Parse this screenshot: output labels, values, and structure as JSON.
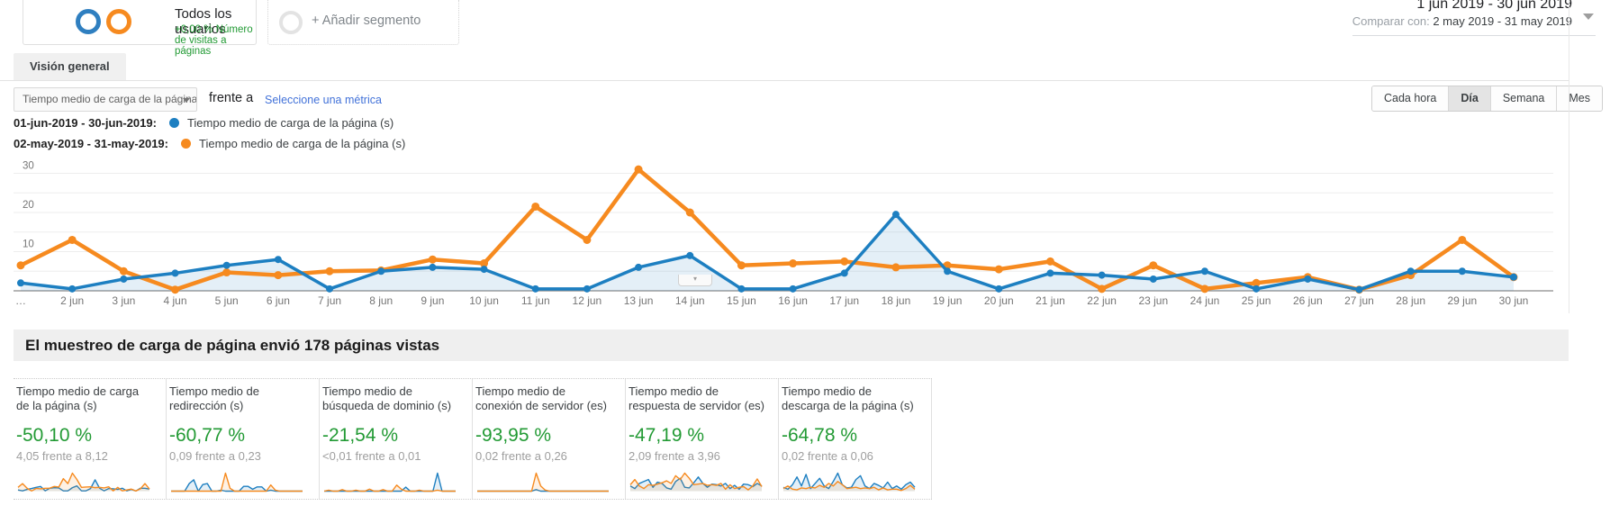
{
  "colors": {
    "blue": "#1d7fc1",
    "orange": "#f68a1f",
    "green": "#229a34",
    "link": "#4272d9"
  },
  "segments": {
    "all_users": {
      "title": "Todos los usuarios",
      "subtitle": "+0,00 % Número de visitas a páginas"
    },
    "add_segment": {
      "label": "+ Añadir segmento"
    }
  },
  "date_range": {
    "primary": "1 jun 2019 - 30 jun 2019",
    "compare_label": "Comparar con:",
    "compare_value": "2 may 2019 - 31 may 2019"
  },
  "tabs": {
    "overview": "Visión general"
  },
  "toolbar": {
    "metric_select": "Tiempo medio de carga de la página (s)",
    "vs_label": "frente a",
    "select_metric_link": "Seleccione una métrica",
    "granularity": [
      {
        "label": "Cada hora"
      },
      {
        "label": "Día"
      },
      {
        "label": "Semana"
      },
      {
        "label": "Mes"
      }
    ]
  },
  "legend": [
    {
      "range": "01-jun-2019 - 30-jun-2019:",
      "metric": "Tiempo medio de carga de la página (s)",
      "color": "#1d7fc1"
    },
    {
      "range": "02-may-2019 - 31-may-2019:",
      "metric": "Tiempo medio de carga de la página (s)",
      "color": "#f68a1f"
    }
  ],
  "chart_data": {
    "type": "line",
    "title": "",
    "categories": [
      "…",
      "2 jun",
      "3 jun",
      "4 jun",
      "5 jun",
      "6 jun",
      "7 jun",
      "8 jun",
      "9 jun",
      "10 jun",
      "11 jun",
      "12 jun",
      "13 jun",
      "14 jun",
      "15 jun",
      "16 jun",
      "17 jun",
      "18 jun",
      "19 jun",
      "20 jun",
      "21 jun",
      "22 jun",
      "23 jun",
      "24 jun",
      "25 jun",
      "26 jun",
      "27 jun",
      "28 jun",
      "29 jun",
      "30 jun"
    ],
    "series": [
      {
        "name": "01-jun-2019 - 30-jun-2019: Tiempo medio de carga de la página (s)",
        "color": "#1d7fc1",
        "fill": true,
        "values": [
          2,
          0.5,
          3,
          4.5,
          6.5,
          8,
          0.5,
          5,
          6,
          5.5,
          0.5,
          0.5,
          6,
          9,
          0.5,
          0.5,
          4.5,
          19.5,
          5,
          0.5,
          4.5,
          4,
          3,
          5,
          0.5,
          3,
          0.3,
          5,
          5,
          3.5
        ]
      },
      {
        "name": "02-may-2019 - 31-may-2019: Tiempo medio de carga de la página (s)",
        "color": "#f68a1f",
        "fill": false,
        "values": [
          6.5,
          13,
          5,
          0.3,
          4.7,
          4,
          5,
          5.2,
          8,
          7,
          21.5,
          13,
          31,
          20,
          6.5,
          7,
          7.5,
          6,
          6.5,
          5.5,
          7.5,
          0.5,
          6.5,
          0.5,
          2,
          3.5,
          0.3,
          4,
          13,
          3.5
        ]
      }
    ],
    "ylim": [
      0,
      35
    ],
    "yticks": [
      10,
      20,
      30
    ],
    "grid": true,
    "legend_position": "top-left"
  },
  "section": {
    "title": "El muestreo de carga de página envió 178 páginas vistas"
  },
  "cards": [
    {
      "title": "Tiempo medio de carga de la página (s)",
      "percent": "-50,10 %",
      "comparison": "4,05 frente a 8,12",
      "spark": {
        "blue": [
          2,
          0.5,
          3,
          4.5,
          6.5,
          8,
          0.5,
          5,
          6,
          5.5,
          0.5,
          0.5,
          6,
          9,
          0.5,
          0.5,
          4.5,
          19.5,
          5,
          0.5,
          4.5,
          4,
          3,
          5,
          0.5,
          3,
          0.3,
          5,
          5,
          3.5
        ],
        "orange": [
          6.5,
          13,
          5,
          0.3,
          4.7,
          4,
          5,
          5.2,
          8,
          7,
          21.5,
          13,
          31,
          20,
          6.5,
          7,
          7.5,
          6,
          6.5,
          5.5,
          7.5,
          0.5,
          6.5,
          0.5,
          2,
          3.5,
          0.3,
          4,
          13,
          3.5
        ]
      }
    },
    {
      "title": "Tiempo medio de redirección (s)",
      "percent": "-60,77 %",
      "comparison": "0,09 frente a 0,23",
      "spark": {
        "blue": [
          0,
          0,
          0,
          0,
          1.6,
          2.4,
          0,
          1.4,
          1.6,
          0,
          0,
          0.2,
          0,
          0,
          0,
          0,
          1,
          1,
          0.4,
          0.9,
          0.9,
          0,
          0.2,
          0,
          0,
          0,
          0,
          0,
          0,
          0
        ],
        "orange": [
          0,
          0,
          0,
          0,
          0,
          0,
          0,
          0,
          0,
          0,
          0,
          0,
          3.8,
          0.6,
          0,
          0,
          0,
          0,
          0,
          0,
          0,
          0,
          1.3,
          0.2,
          0,
          0,
          0,
          0,
          0,
          0
        ]
      }
    },
    {
      "title": "Tiempo medio de búsqueda de dominio (s)",
      "percent": "-21,54 %",
      "comparison": "<0,01 frente a 0,01",
      "spark": {
        "blue": [
          0,
          0,
          0,
          0,
          0,
          0,
          0,
          0,
          0,
          0,
          0,
          0,
          0,
          0,
          0,
          0,
          0,
          0,
          0.8,
          0,
          0,
          0,
          0,
          0,
          0,
          3.6,
          0,
          0,
          0,
          0
        ],
        "orange": [
          0,
          0.2,
          0,
          0,
          0.3,
          0,
          0,
          0.2,
          0,
          0,
          0.4,
          0,
          0,
          0.3,
          0,
          0,
          1.2,
          0.4,
          0,
          0,
          0,
          0.2,
          0,
          0,
          0,
          0.2,
          0,
          0,
          0,
          0
        ]
      }
    },
    {
      "title": "Tiempo medio de conexión de servidor (es)",
      "percent": "-93,95 %",
      "comparison": "0,02 frente a 0,26",
      "spark": {
        "blue": [
          0,
          0,
          0,
          0,
          0,
          0,
          0,
          0,
          0,
          0,
          0,
          0,
          0,
          0.3,
          0,
          0,
          0,
          0,
          0,
          0,
          0,
          0,
          0,
          0,
          0,
          0,
          0,
          0,
          0,
          0
        ],
        "orange": [
          0,
          0,
          0,
          0,
          0,
          0,
          0,
          0,
          0,
          0,
          0,
          0,
          0,
          3.5,
          1,
          0.2,
          0,
          0,
          0,
          0,
          0,
          0,
          0,
          0,
          0,
          0,
          0,
          0,
          0,
          0
        ]
      }
    },
    {
      "title": "Tiempo medio de respuesta de servidor (es)",
      "percent": "-47,19 %",
      "comparison": "2,09 frente a 3,96",
      "spark": {
        "blue": [
          0.8,
          0.4,
          1.2,
          1.5,
          1.8,
          0.6,
          1.4,
          1.2,
          0.5,
          0.3,
          1.5,
          2,
          0.6,
          0.5,
          1.3,
          2.2,
          1.2,
          0.6,
          1.1,
          1,
          0.8,
          1.2,
          0.4,
          0.9,
          0.3,
          1.1,
          1,
          0.7,
          1.2,
          0.8
        ],
        "orange": [
          1,
          1.8,
          0.8,
          0.4,
          1,
          0.9,
          1.1,
          1.3,
          1.6,
          1.2,
          2.4,
          1.8,
          2.8,
          2,
          1,
          1.1,
          1.2,
          0.9,
          1,
          0.9,
          1.2,
          0.3,
          1,
          0.4,
          0.6,
          0.7,
          0.2,
          0.8,
          1.9,
          0.7
        ]
      }
    },
    {
      "title": "Tiempo medio de descarga de la página (s)",
      "percent": "-64,78 %",
      "comparison": "0,02 frente a 0,06",
      "spark": {
        "blue": [
          0.6,
          0.3,
          1,
          2.2,
          0.8,
          2.6,
          0.4,
          1.2,
          2,
          0.8,
          0.4,
          1.5,
          2.8,
          1,
          0.5,
          0.6,
          1.8,
          2.4,
          0.8,
          0.4,
          1.2,
          0.9,
          0.5,
          1.4,
          0.4,
          0.8,
          0.3,
          1,
          1.4,
          0.6
        ],
        "orange": [
          0.4,
          0.8,
          0.3,
          0.2,
          0.5,
          0.4,
          0.6,
          0.5,
          0.9,
          0.6,
          1.2,
          0.8,
          1.5,
          1,
          0.4,
          0.5,
          0.6,
          0.4,
          0.5,
          0.4,
          0.6,
          0.2,
          0.5,
          0.2,
          0.3,
          0.3,
          0.1,
          0.4,
          0.9,
          0.3
        ]
      }
    }
  ]
}
